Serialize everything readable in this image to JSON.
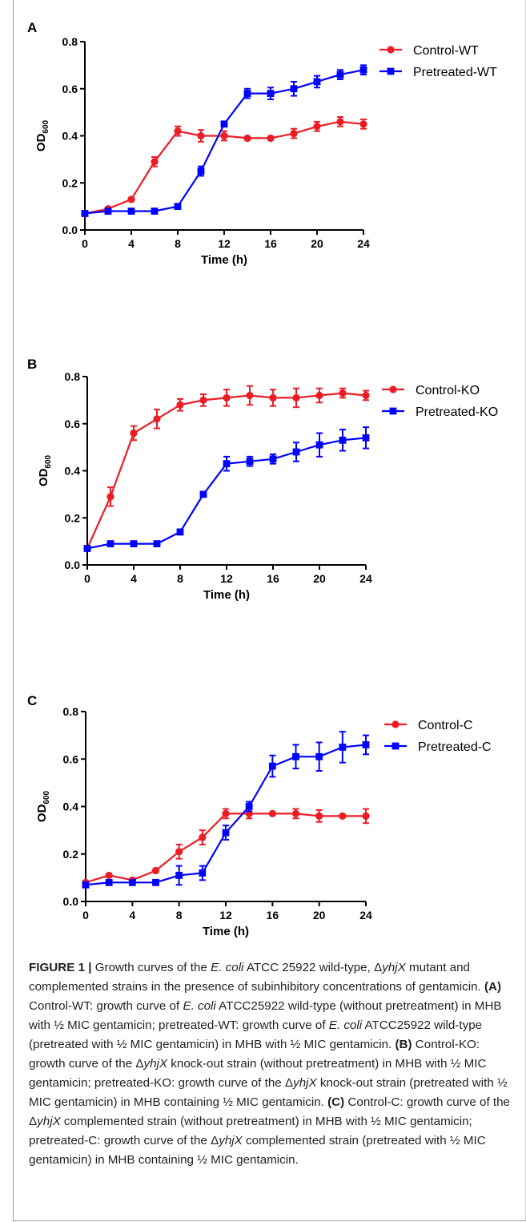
{
  "chart_data": [
    {
      "panel": "A",
      "type": "line",
      "ylabel_main": "OD",
      "ylabel_sub": "600",
      "xlabel": "Time (h)",
      "xlim": [
        0,
        24
      ],
      "ylim": [
        0,
        0.8
      ],
      "xticks": [
        "0",
        "4",
        "8",
        "12",
        "16",
        "20",
        "24"
      ],
      "yticks": [
        "0.0",
        "0.2",
        "0.4",
        "0.6",
        "0.8"
      ],
      "legend": "top-right",
      "x": [
        0,
        2,
        4,
        6,
        8,
        10,
        12,
        14,
        16,
        18,
        20,
        22,
        24
      ],
      "series": [
        {
          "name": "Control-WT",
          "color": "#ed1c24",
          "marker": "circle",
          "values": [
            0.07,
            0.09,
            0.13,
            0.29,
            0.42,
            0.4,
            0.4,
            0.39,
            0.39,
            0.41,
            0.44,
            0.46,
            0.45
          ],
          "errors": [
            0.005,
            0.005,
            0.005,
            0.02,
            0.02,
            0.025,
            0.02,
            0.005,
            0.005,
            0.02,
            0.02,
            0.02,
            0.02
          ]
        },
        {
          "name": "Pretreated-WT",
          "color": "#0000ff",
          "marker": "square",
          "values": [
            0.07,
            0.08,
            0.08,
            0.08,
            0.1,
            0.25,
            0.45,
            0.58,
            0.58,
            0.6,
            0.63,
            0.66,
            0.68
          ],
          "errors": [
            0.005,
            0.005,
            0.005,
            0.005,
            0.005,
            0.02,
            0.01,
            0.02,
            0.025,
            0.03,
            0.025,
            0.02,
            0.02
          ]
        }
      ]
    },
    {
      "panel": "B",
      "type": "line",
      "ylabel_main": "OD",
      "ylabel_sub": "600",
      "xlabel": "Time (h)",
      "xlim": [
        0,
        24
      ],
      "ylim": [
        0,
        0.8
      ],
      "xticks": [
        "0",
        "4",
        "8",
        "12",
        "16",
        "20",
        "24"
      ],
      "yticks": [
        "0.0",
        "0.2",
        "0.4",
        "0.6",
        "0.8"
      ],
      "legend": "top-right",
      "x": [
        0,
        2,
        4,
        6,
        8,
        10,
        12,
        14,
        16,
        18,
        20,
        22,
        24
      ],
      "series": [
        {
          "name": "Control-KO",
          "color": "#ed1c24",
          "marker": "circle",
          "values": [
            0.07,
            0.29,
            0.56,
            0.62,
            0.68,
            0.7,
            0.71,
            0.72,
            0.71,
            0.71,
            0.72,
            0.73,
            0.72
          ],
          "errors": [
            0.005,
            0.04,
            0.03,
            0.04,
            0.025,
            0.025,
            0.035,
            0.04,
            0.035,
            0.04,
            0.03,
            0.02,
            0.02
          ]
        },
        {
          "name": "Pretreated-KO",
          "color": "#0000ff",
          "marker": "square",
          "values": [
            0.07,
            0.09,
            0.09,
            0.09,
            0.14,
            0.3,
            0.43,
            0.44,
            0.45,
            0.48,
            0.51,
            0.53,
            0.54
          ],
          "errors": [
            0.005,
            0.005,
            0.005,
            0.005,
            0.005,
            0.005,
            0.03,
            0.02,
            0.02,
            0.04,
            0.05,
            0.045,
            0.045
          ]
        }
      ]
    },
    {
      "panel": "C",
      "type": "line",
      "ylabel_main": "OD",
      "ylabel_sub": "600",
      "xlabel": "Time (h)",
      "xlim": [
        0,
        24
      ],
      "ylim": [
        0,
        0.8
      ],
      "xticks": [
        "0",
        "4",
        "8",
        "12",
        "16",
        "20",
        "24"
      ],
      "yticks": [
        "0.0",
        "0.2",
        "0.4",
        "0.6",
        "0.8"
      ],
      "legend": "top-right",
      "x": [
        0,
        2,
        4,
        6,
        8,
        10,
        12,
        14,
        16,
        18,
        20,
        22,
        24
      ],
      "series": [
        {
          "name": "Control-C",
          "color": "#ed1c24",
          "marker": "circle",
          "values": [
            0.08,
            0.11,
            0.09,
            0.13,
            0.21,
            0.27,
            0.37,
            0.37,
            0.37,
            0.37,
            0.36,
            0.36,
            0.36
          ],
          "errors": [
            0.005,
            0.005,
            0.005,
            0.005,
            0.03,
            0.03,
            0.02,
            0.02,
            0.005,
            0.02,
            0.025,
            0.005,
            0.03
          ]
        },
        {
          "name": "Pretreated-C",
          "color": "#0000ff",
          "marker": "square",
          "values": [
            0.07,
            0.08,
            0.08,
            0.08,
            0.11,
            0.12,
            0.29,
            0.4,
            0.57,
            0.61,
            0.61,
            0.65,
            0.66
          ],
          "errors": [
            0.005,
            0.005,
            0.005,
            0.005,
            0.04,
            0.03,
            0.03,
            0.02,
            0.045,
            0.05,
            0.06,
            0.065,
            0.04
          ]
        }
      ]
    }
  ],
  "caption": {
    "figure_label": "FIGURE 1 |",
    "text_1": " Growth curves of the ",
    "ecoli_1": "E. coli",
    "text_2": " ATCC 25922 wild-type, Δ",
    "gene_1": "yhjX",
    "text_3": " mutant and complemented strains in the presence of subinhibitory concentrations of gentamicin. ",
    "label_a": "(A)",
    "text_4": " Control-WT: growth curve of ",
    "ecoli_2": "E. coli",
    "text_5": " ATCC25922 wild-type (without pretreatment) in MHB with ½ MIC gentamicin; pretreated-WT: growth curve of ",
    "ecoli_3": "E. coli",
    "text_6": " ATCC25922 wild-type (pretreated with ½ MIC gentamicin) in MHB with ½ MIC gentamicin. ",
    "label_b": "(B)",
    "text_7": " Control-KO: growth curve of the Δ",
    "gene_2": "yhjX",
    "text_8": " knock-out strain (without pretreatment) in MHB with ½ MIC gentamicin; pretreated-KO: growth curve of the Δ",
    "gene_3": "yhjX",
    "text_9": " knock-out strain (pretreated with ½ MIC gentamicin) in MHB containing ½ MIC gentamicin. ",
    "label_c": "(C)",
    "text_10": " Control-C: growth curve of the Δ",
    "gene_4": "yhjX",
    "text_11": " complemented strain (without pretreatment) in MHB with ½ MIC gentamicin; pretreated-C: growth curve of the Δ",
    "gene_5": "yhjX",
    "text_12": " complemented strain (pretreated with ½ MIC gentamicin) in MHB containing ½ MIC gentamicin."
  }
}
